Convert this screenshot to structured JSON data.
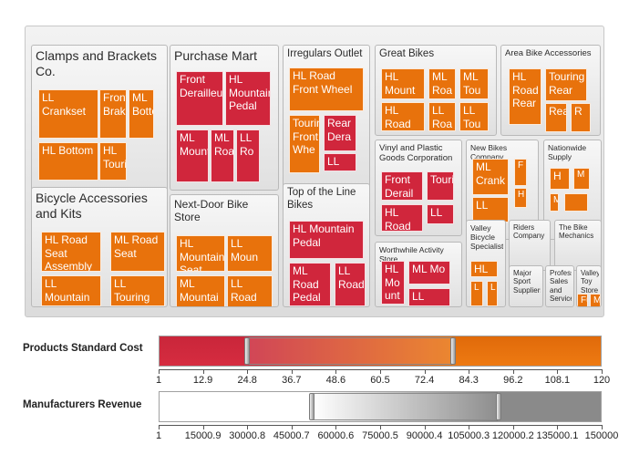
{
  "chart_data": {
    "type": "treemap",
    "groups": [
      {
        "name": "Clamps and Brackets Co.",
        "items": [
          "LL Crankset",
          "Front Brakes",
          "ML Bottom",
          "HL Bottom",
          "HL Touring"
        ]
      },
      {
        "name": "Purchase Mart",
        "items": [
          "Front Derailleur",
          "HL Mountain Pedal",
          "ML Mountai",
          "ML Road",
          "LL Ro"
        ]
      },
      {
        "name": "Irregulars Outlet",
        "items": [
          "HL Road Front Wheel",
          "Touring Front Whe",
          "Rear Dera",
          "LL"
        ]
      },
      {
        "name": "Great Bikes",
        "items": [
          "HL Mount",
          "ML Roa",
          "ML Tou",
          "HL Road",
          "LL Roa",
          "LL Tou"
        ]
      },
      {
        "name": "Area Bike Accessories",
        "items": [
          "HL Road Rear",
          "Touring Rear",
          "Rear",
          "R"
        ]
      },
      {
        "name": "Vinyl and Plastic Goods Corporation",
        "items": [
          "Front Derail",
          "Touring",
          "HL Road",
          "LL"
        ]
      },
      {
        "name": "New Bikes Company",
        "items": [
          "ML Crank",
          "F",
          "LL",
          "H"
        ]
      },
      {
        "name": "Nationwide Supply",
        "items": [
          "H",
          "M",
          "M",
          ""
        ]
      },
      {
        "name": "Bicycle Accessories and Kits",
        "items": [
          "HL Road Seat Assembly",
          "ML Road Seat",
          "LL Mountain",
          "LL Touring"
        ]
      },
      {
        "name": "Next-Door Bike Store",
        "items": [
          "HL Mountain Seat",
          "LL Moun",
          "ML Mountai",
          "LL Road"
        ]
      },
      {
        "name": "Top of the Line Bikes",
        "items": [
          "HL Mountain Pedal",
          "ML Road Pedal",
          "LL Road"
        ]
      },
      {
        "name": "Worthwhile Activity Store",
        "items": [
          "HL Mo unt",
          "ML Mo",
          "LL"
        ]
      },
      {
        "name": "Valley Bicycle Specialists",
        "items": [
          "HL",
          "L",
          "L"
        ]
      },
      {
        "name": "Riders Company",
        "items": []
      },
      {
        "name": "The Bike Mechanics",
        "items": []
      },
      {
        "name": "Major Sport Suppliers",
        "items": []
      },
      {
        "name": "Professional Sales and Service",
        "items": []
      },
      {
        "name": "Valley Toy Store",
        "items": [
          "Fu",
          "M"
        ]
      }
    ],
    "color_scale": {
      "low": "#d0263c",
      "high": "#e8720c"
    }
  },
  "sliders": [
    {
      "label": "Products Standard Cost",
      "min": 1,
      "max": 120,
      "range": [
        24.8,
        80.0
      ],
      "ticks": [
        "1",
        "12.9",
        "24.8",
        "36.7",
        "48.6",
        "60.5",
        "72.4",
        "84.3",
        "96.2",
        "108.1",
        "120"
      ]
    },
    {
      "label": "Manufacturers Revenue",
      "min": 1,
      "max": 150000,
      "range": [
        52000,
        115000
      ],
      "ticks": [
        "1",
        "15000.9",
        "30000.8",
        "45000.7",
        "60000.6",
        "75000.5",
        "90000.4",
        "105000.3",
        "120000.2",
        "135000.1",
        "150000"
      ]
    }
  ]
}
